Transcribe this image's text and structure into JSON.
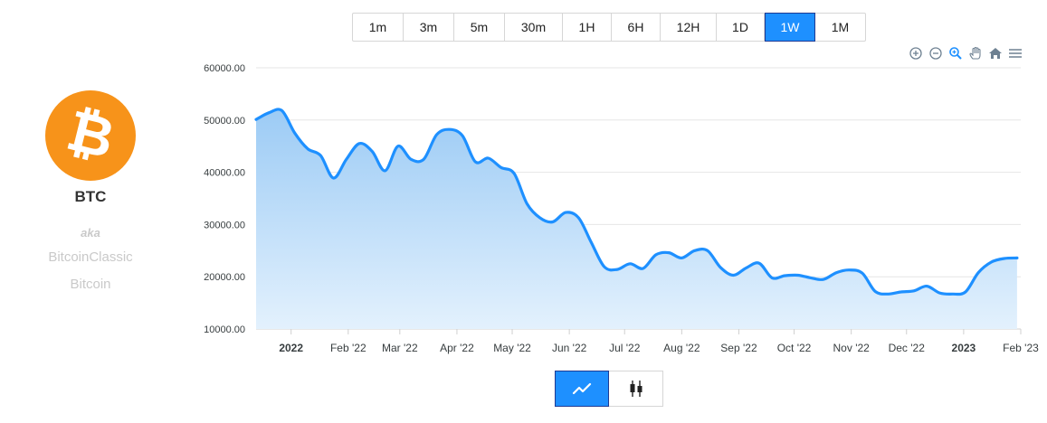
{
  "coin": {
    "symbol": "BTC",
    "logo_glyph": "₿",
    "brand_color": "#f7931a",
    "aka_label": "aka",
    "aliases": [
      "BitcoinClassic",
      "Bitcoin"
    ]
  },
  "intervals": {
    "options": [
      "1m",
      "3m",
      "5m",
      "30m",
      "1H",
      "6H",
      "12H",
      "1D",
      "1W",
      "1M"
    ],
    "selected": "1W"
  },
  "toolbar": {
    "icons": [
      "zoom-in-icon",
      "zoom-out-icon",
      "zoom-selection-icon",
      "pan-hand-icon",
      "home-reset-icon",
      "menu-icon"
    ]
  },
  "chart_types": {
    "options": [
      "line-chart-icon",
      "candlestick-chart-icon"
    ],
    "selected": "line-chart-icon"
  },
  "colors": {
    "accent": "#1e90ff",
    "line": "#1e90ff",
    "area_top": "#9ccbf5",
    "area_bottom": "#e3f1fd"
  },
  "chart_data": {
    "type": "area",
    "title": "",
    "xlabel": "",
    "ylabel": "",
    "ylim": [
      10000,
      60000
    ],
    "xlim": [
      "2021-12-13",
      "2023-02-01"
    ],
    "grid": true,
    "yticks": [
      "10000.00",
      "20000.00",
      "30000.00",
      "40000.00",
      "50000.00",
      "60000.00"
    ],
    "xticks": [
      {
        "date": "2022-01-01",
        "label": "2022",
        "bold": true
      },
      {
        "date": "2022-02-01",
        "label": "Feb '22"
      },
      {
        "date": "2022-03-01",
        "label": "Mar '22"
      },
      {
        "date": "2022-04-01",
        "label": "Apr '22"
      },
      {
        "date": "2022-05-01",
        "label": "May '22"
      },
      {
        "date": "2022-06-01",
        "label": "Jun '22"
      },
      {
        "date": "2022-07-01",
        "label": "Jul '22"
      },
      {
        "date": "2022-08-01",
        "label": "Aug '22"
      },
      {
        "date": "2022-09-01",
        "label": "Sep '22"
      },
      {
        "date": "2022-10-01",
        "label": "Oct '22"
      },
      {
        "date": "2022-11-01",
        "label": "Nov '22"
      },
      {
        "date": "2022-12-01",
        "label": "Dec '22"
      },
      {
        "date": "2023-01-01",
        "label": "2023",
        "bold": true
      },
      {
        "date": "2023-02-01",
        "label": "Feb '23"
      }
    ],
    "series": [
      {
        "values": [
          [
            "2021-12-13",
            50100
          ],
          [
            "2021-12-20",
            51400
          ],
          [
            "2021-12-27",
            51800
          ],
          [
            "2022-01-03",
            47500
          ],
          [
            "2022-01-10",
            44500
          ],
          [
            "2022-01-17",
            43200
          ],
          [
            "2022-01-24",
            38900
          ],
          [
            "2022-01-31",
            42500
          ],
          [
            "2022-02-07",
            45500
          ],
          [
            "2022-02-14",
            44000
          ],
          [
            "2022-02-21",
            40300
          ],
          [
            "2022-02-28",
            45000
          ],
          [
            "2022-03-07",
            42500
          ],
          [
            "2022-03-14",
            42500
          ],
          [
            "2022-03-21",
            47200
          ],
          [
            "2022-03-28",
            48200
          ],
          [
            "2022-04-04",
            47000
          ],
          [
            "2022-04-11",
            42000
          ],
          [
            "2022-04-18",
            42700
          ],
          [
            "2022-04-25",
            40900
          ],
          [
            "2022-05-02",
            39800
          ],
          [
            "2022-05-09",
            34000
          ],
          [
            "2022-05-16",
            31300
          ],
          [
            "2022-05-23",
            30500
          ],
          [
            "2022-05-30",
            32300
          ],
          [
            "2022-06-06",
            31300
          ],
          [
            "2022-06-13",
            26500
          ],
          [
            "2022-06-20",
            21900
          ],
          [
            "2022-06-27",
            21400
          ],
          [
            "2022-07-04",
            22500
          ],
          [
            "2022-07-11",
            21600
          ],
          [
            "2022-07-18",
            24200
          ],
          [
            "2022-07-25",
            24600
          ],
          [
            "2022-08-01",
            23600
          ],
          [
            "2022-08-08",
            25000
          ],
          [
            "2022-08-15",
            25000
          ],
          [
            "2022-08-22",
            21800
          ],
          [
            "2022-08-29",
            20300
          ],
          [
            "2022-09-05",
            21700
          ],
          [
            "2022-09-12",
            22600
          ],
          [
            "2022-09-19",
            19800
          ],
          [
            "2022-09-26",
            20200
          ],
          [
            "2022-10-03",
            20300
          ],
          [
            "2022-10-10",
            19800
          ],
          [
            "2022-10-17",
            19500
          ],
          [
            "2022-10-24",
            20800
          ],
          [
            "2022-10-31",
            21300
          ],
          [
            "2022-11-07",
            20700
          ],
          [
            "2022-11-14",
            17200
          ],
          [
            "2022-11-21",
            16700
          ],
          [
            "2022-11-28",
            17100
          ],
          [
            "2022-12-05",
            17300
          ],
          [
            "2022-12-12",
            18200
          ],
          [
            "2022-12-19",
            16900
          ],
          [
            "2022-12-26",
            16700
          ],
          [
            "2023-01-02",
            17100
          ],
          [
            "2023-01-09",
            20800
          ],
          [
            "2023-01-16",
            22800
          ],
          [
            "2023-01-23",
            23500
          ],
          [
            "2023-01-30",
            23600
          ]
        ]
      }
    ]
  }
}
